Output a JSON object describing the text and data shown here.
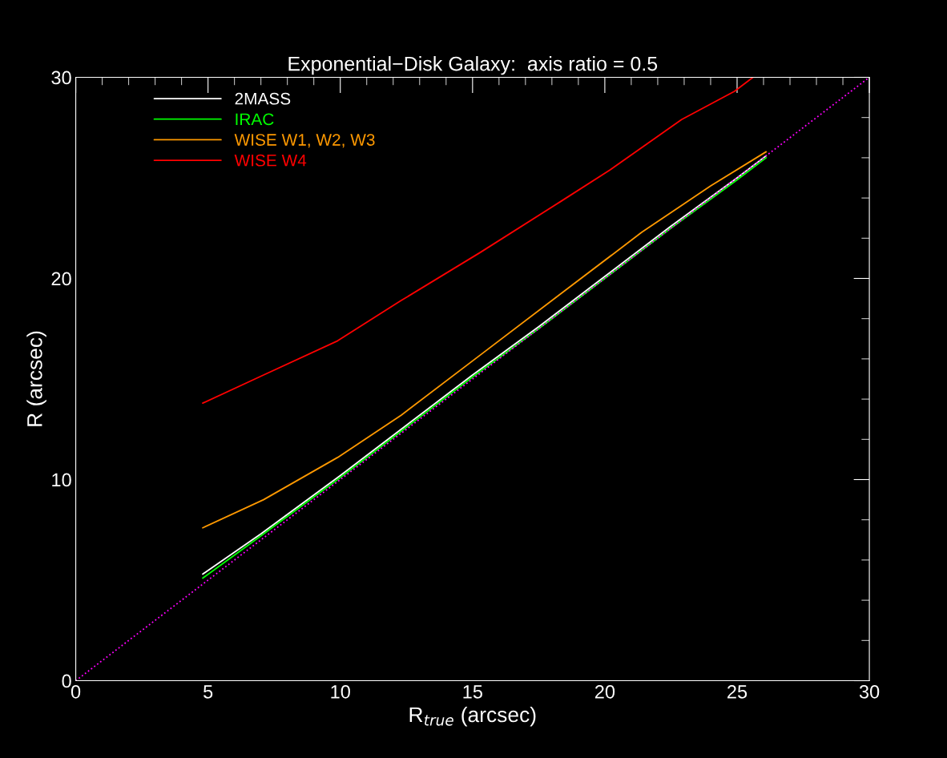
{
  "chart_data": {
    "type": "line",
    "title": "Exponential−Disk Galaxy:  axis ratio = 0.5",
    "xlabel": "R$_{true}$ (arcsec)",
    "ylabel": "R (arcsec)",
    "xlim": [
      0,
      30
    ],
    "ylim": [
      0,
      30
    ],
    "xticks": [
      0,
      5,
      10,
      15,
      20,
      25,
      30
    ],
    "yticks": [
      0,
      10,
      20,
      30
    ],
    "grid": false,
    "legend": "top left",
    "series": [
      {
        "name": "2MASS",
        "color": "#ffffff",
        "x": [
          4.8,
          7,
          10,
          12.5,
          15,
          17.5,
          20,
          22.5,
          25,
          26.1
        ],
        "values": [
          5.3,
          7.3,
          10.2,
          12.7,
          15.2,
          17.6,
          20.1,
          22.6,
          25.0,
          26.1
        ]
      },
      {
        "name": "IRAC",
        "color": "#00ff00",
        "x": [
          4.8,
          7,
          10,
          12.5,
          15,
          17.5,
          20,
          22.5,
          25,
          26.1
        ],
        "values": [
          5.1,
          7.2,
          10.1,
          12.6,
          15.1,
          17.5,
          20.0,
          22.5,
          24.9,
          26.0
        ]
      },
      {
        "name": "WISE W1, W2, W3",
        "color": "#ff9900",
        "x": [
          4.8,
          7.1,
          9.9,
          12.3,
          15.3,
          18.3,
          21.4,
          24.0,
          26.1
        ],
        "values": [
          7.6,
          9.0,
          11.1,
          13.2,
          16.2,
          19.2,
          22.3,
          24.6,
          26.3
        ]
      },
      {
        "name": "WISE W4",
        "color": "#ff0000",
        "x": [
          4.8,
          7.1,
          9.9,
          12.3,
          15.3,
          18.3,
          20.2,
          22.9,
          24.9,
          25.6
        ],
        "values": [
          13.8,
          15.2,
          16.9,
          18.9,
          21.3,
          23.8,
          25.4,
          27.9,
          29.3,
          30.0
        ]
      },
      {
        "color": "#ff00ff",
        "x": [
          0,
          30
        ],
        "values": [
          0,
          30
        ],
        "line_style": "dotted"
      }
    ]
  }
}
